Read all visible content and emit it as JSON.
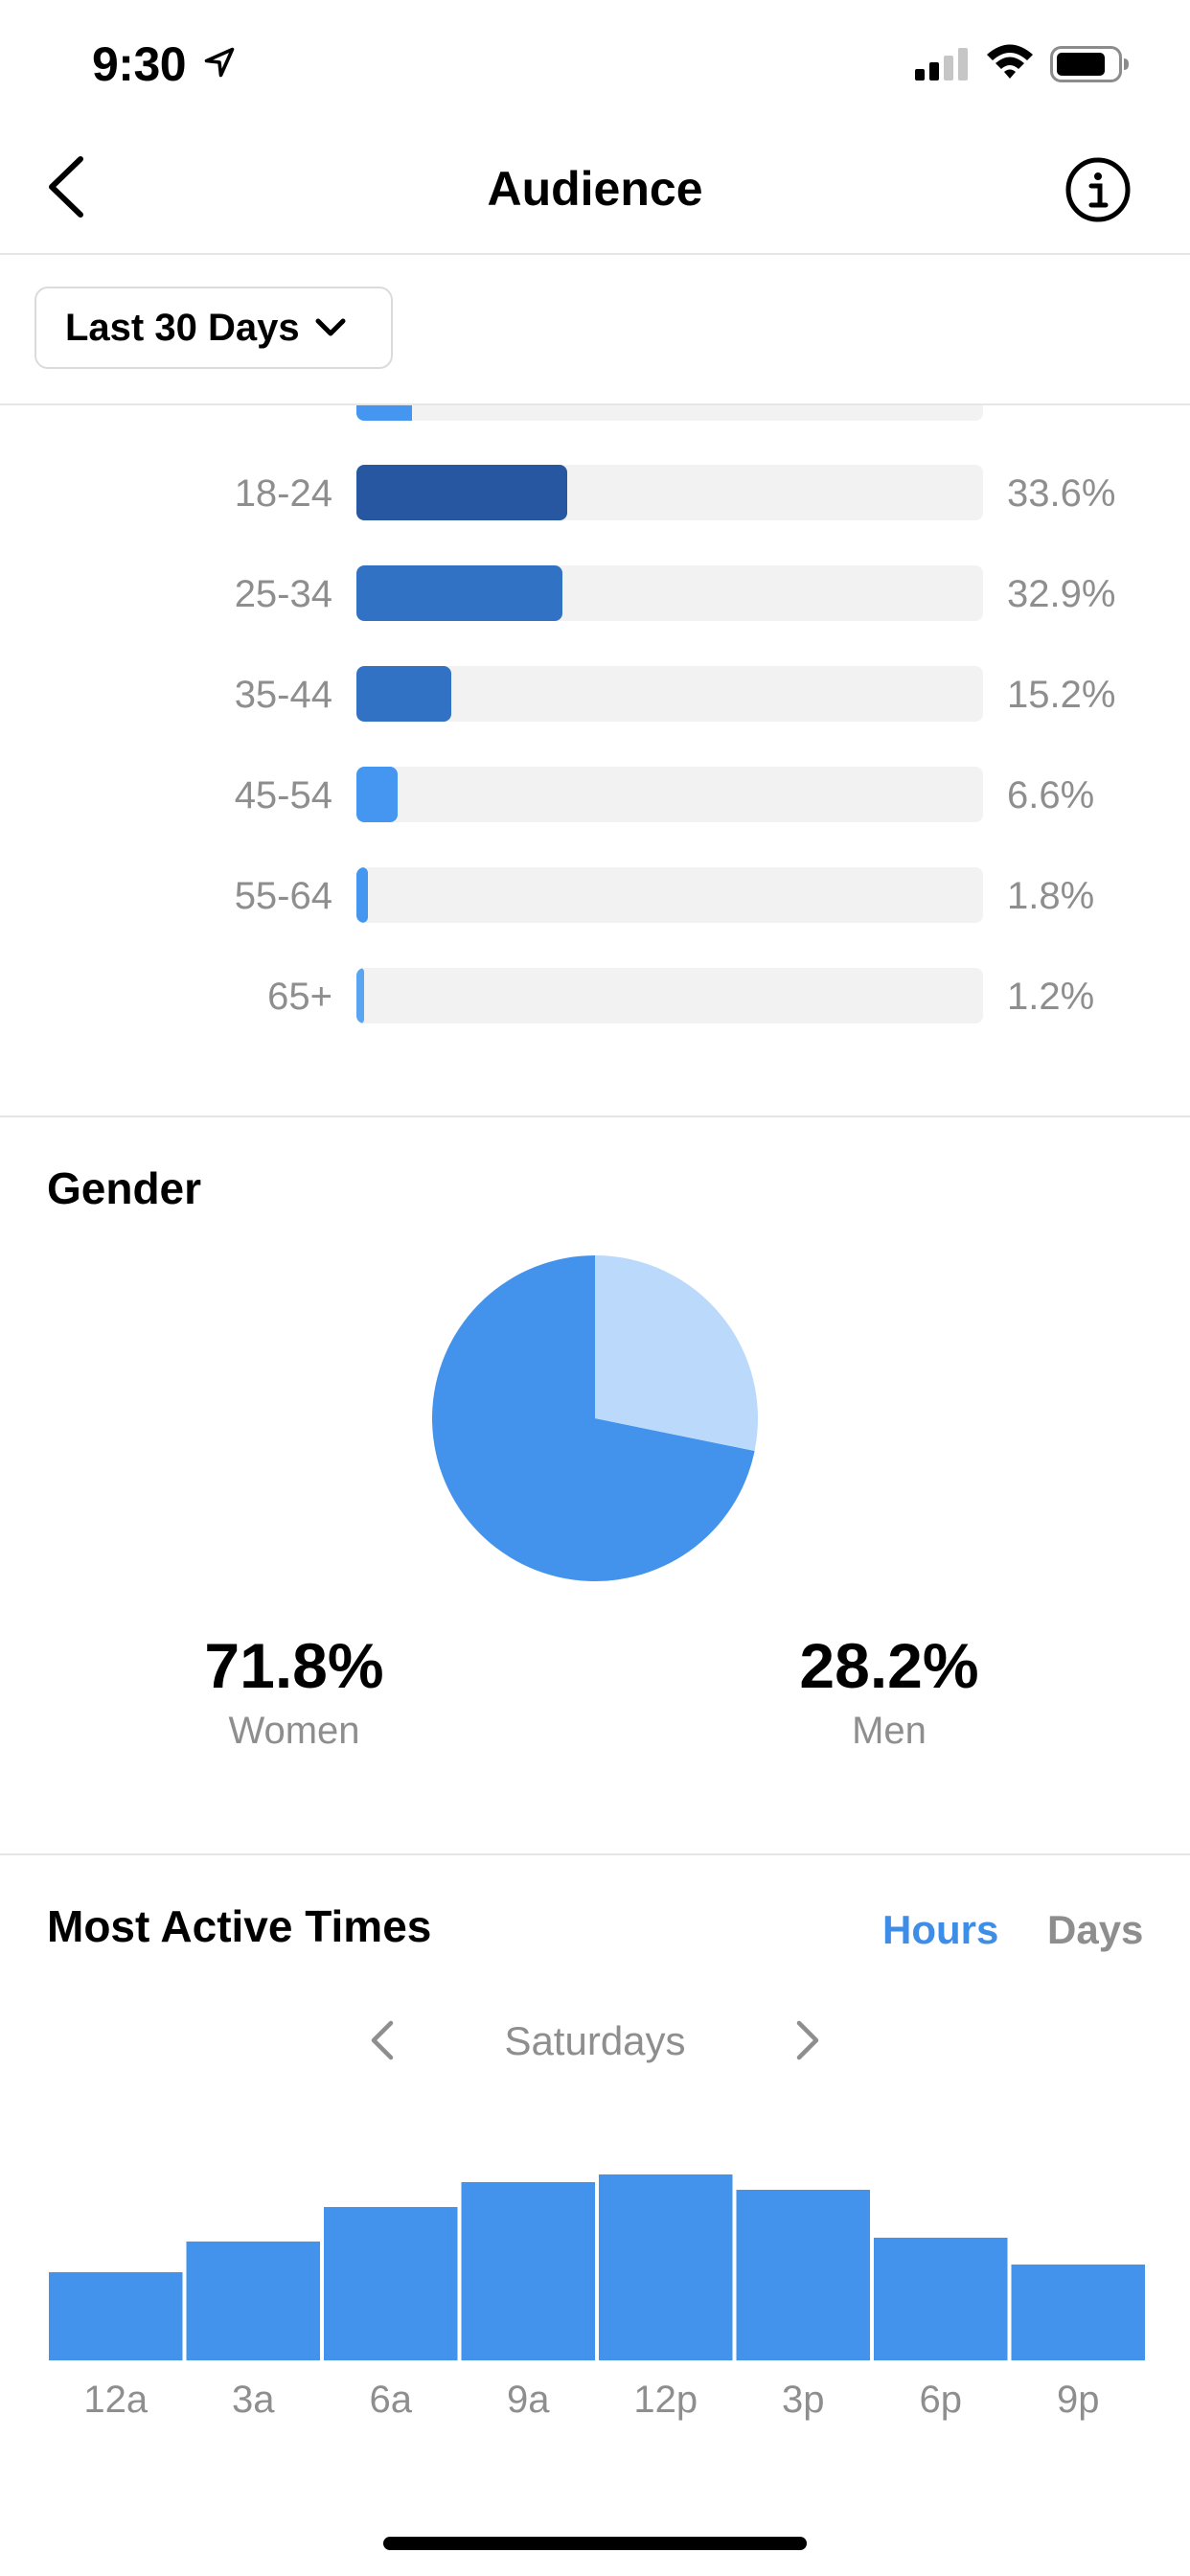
{
  "status_bar": {
    "time": "9:30"
  },
  "header": {
    "title": "Audience"
  },
  "filter": {
    "label": "Last 30 Days"
  },
  "age_rows": [
    {
      "range": "18-24",
      "value": "33.6%",
      "fraction": 0.336,
      "color": "#2657a0"
    },
    {
      "range": "25-34",
      "value": "32.9%",
      "fraction": 0.329,
      "color": "#3272c4"
    },
    {
      "range": "35-44",
      "value": "15.2%",
      "fraction": 0.152,
      "color": "#3272c4"
    },
    {
      "range": "45-54",
      "value": "6.6%",
      "fraction": 0.066,
      "color": "#4496f0"
    },
    {
      "range": "55-64",
      "value": "1.8%",
      "fraction": 0.018,
      "color": "#4496f0"
    },
    {
      "range": "65+",
      "value": "1.2%",
      "fraction": 0.012,
      "color": "#5aa5f2"
    }
  ],
  "gender": {
    "title": "Gender",
    "women": {
      "value": "71.8%",
      "label": "Women",
      "fraction": 0.718,
      "color": "#4393ed"
    },
    "men": {
      "value": "28.2%",
      "label": "Men",
      "fraction": 0.282,
      "color": "#bbd9fb"
    }
  },
  "active_times": {
    "title": "Most Active Times",
    "tabs": {
      "hours": "Hours",
      "days": "Days"
    },
    "day": "Saturdays"
  },
  "chart_data": {
    "type": "bar",
    "categories": [
      "12a",
      "3a",
      "6a",
      "9a",
      "12p",
      "3p",
      "6p",
      "9p"
    ],
    "values": [
      46,
      62,
      80,
      93,
      97,
      89,
      64,
      50
    ],
    "ylim": [
      0,
      100
    ],
    "color": "#4393ed",
    "grid": false
  },
  "colors": {
    "accent": "#3e8ee8",
    "muted": "#8e8e8e",
    "track": "#f2f2f2"
  }
}
